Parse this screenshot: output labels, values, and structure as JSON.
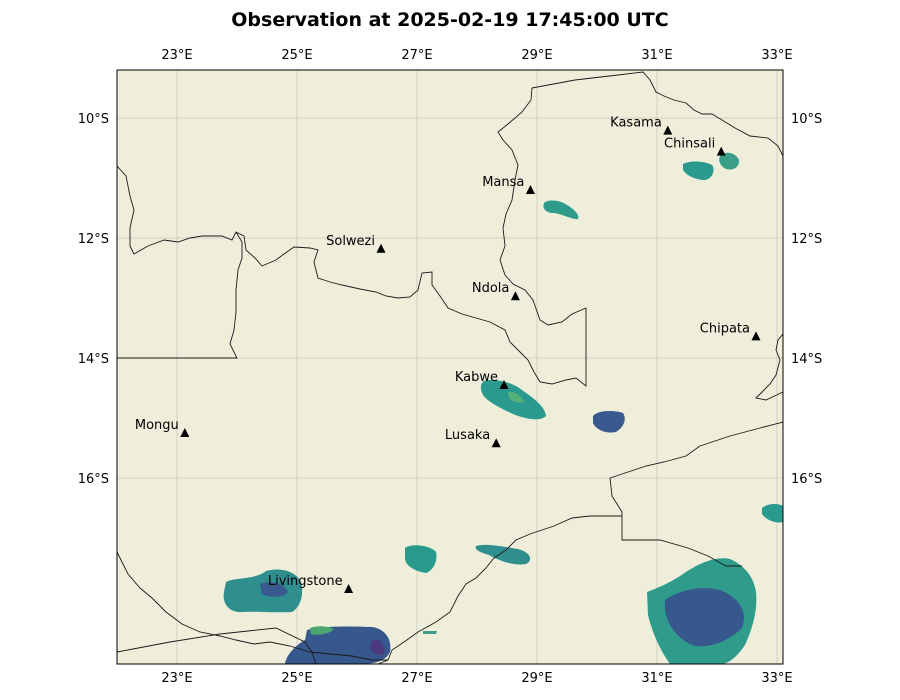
{
  "title": "Observation at 2025-02-19 17:45:00 UTC",
  "colors": {
    "land": "#efeedb",
    "grid": "#c9c9bd",
    "border": "#1a1a1a",
    "marker": "#000000"
  },
  "map": {
    "lon_range": [
      22.0,
      33.1
    ],
    "lat_range": [
      -19.1,
      -9.2
    ],
    "x_ticks": [
      "23°E",
      "25°E",
      "27°E",
      "29°E",
      "31°E",
      "33°E"
    ],
    "y_ticks": [
      "10°S",
      "12°S",
      "14°S",
      "16°S"
    ]
  },
  "cities": [
    {
      "name": "Kasama",
      "lon": 31.18,
      "lat": -10.21
    },
    {
      "name": "Chinsali",
      "lon": 32.07,
      "lat": -10.56
    },
    {
      "name": "Mansa",
      "lon": 28.89,
      "lat": -11.2
    },
    {
      "name": "Solwezi",
      "lon": 26.4,
      "lat": -12.18
    },
    {
      "name": "Ndola",
      "lon": 28.64,
      "lat": -12.97
    },
    {
      "name": "Chipata",
      "lon": 32.65,
      "lat": -13.64
    },
    {
      "name": "Kabwe",
      "lon": 28.45,
      "lat": -14.45
    },
    {
      "name": "Mongu",
      "lon": 23.13,
      "lat": -15.25
    },
    {
      "name": "Lusaka",
      "lon": 28.32,
      "lat": -15.42
    },
    {
      "name": "Livingstone",
      "lon": 25.86,
      "lat": -17.85
    }
  ]
}
